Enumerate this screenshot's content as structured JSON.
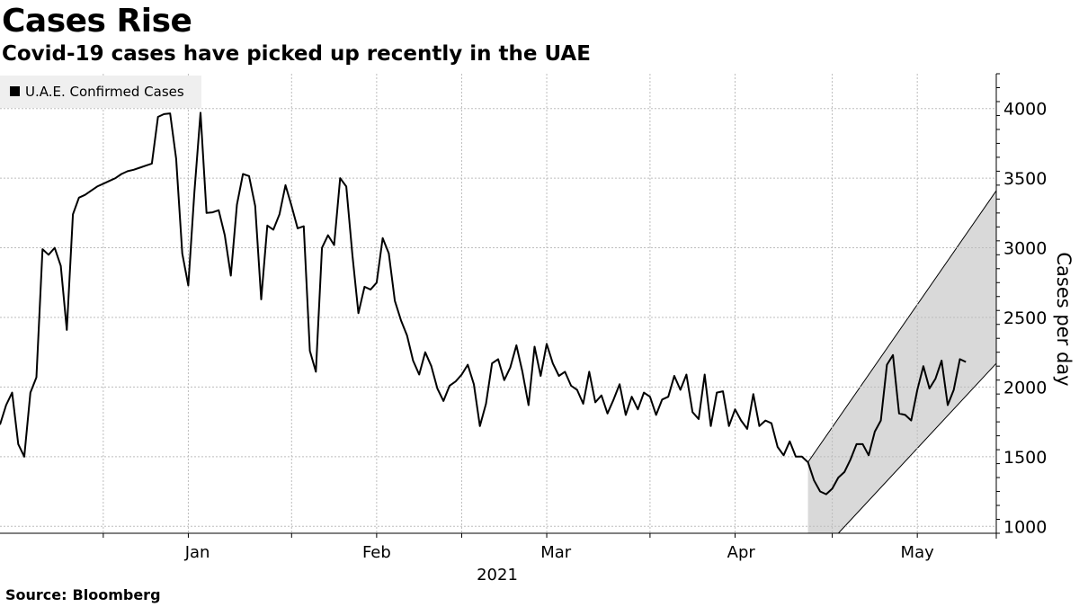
{
  "header": {
    "title": "Cases Rise",
    "subtitle": "Covid-19 cases have picked up recently in the UAE"
  },
  "footer": {
    "source_label": "Source:",
    "source_value": "Bloomberg"
  },
  "colors": {
    "line": "#000000",
    "band": "#d9d9d9",
    "grid": "#bdbdbd",
    "legend_bg": "#efefef"
  },
  "chart_data": {
    "type": "line",
    "title": "Cases Rise",
    "subtitle": "Covid-19 cases have picked up recently in the UAE",
    "xlabel": "2021",
    "ylabel": "Cases per day",
    "x_start": "2020-12-15",
    "x_end": "2021-05-28",
    "ylim": [
      950,
      4250
    ],
    "yticks": [
      1000,
      1500,
      2000,
      2500,
      3000,
      3500,
      4000
    ],
    "month_ticks": [
      {
        "label": "Jan",
        "date": "2021-01-01"
      },
      {
        "label": "Feb",
        "date": "2021-02-01"
      },
      {
        "label": "Mar",
        "date": "2021-03-01"
      },
      {
        "label": "Apr",
        "date": "2021-04-01"
      },
      {
        "label": "May",
        "date": "2021-05-01"
      }
    ],
    "vertical_grid_dates": [
      "2021-01-01",
      "2021-01-15",
      "2021-02-01",
      "2021-02-15",
      "2021-03-01",
      "2021-03-15",
      "2021-04-01",
      "2021-04-15",
      "2021-05-01",
      "2021-05-15"
    ],
    "grid": true,
    "legend_position": "top-left",
    "series": [
      {
        "name": "U.A.E. Confirmed Cases",
        "points": [
          [
            "2020-12-15",
            1730
          ],
          [
            "2020-12-16",
            1870
          ],
          [
            "2020-12-17",
            1960
          ],
          [
            "2020-12-18",
            1590
          ],
          [
            "2020-12-19",
            1500
          ],
          [
            "2020-12-20",
            1960
          ],
          [
            "2020-12-21",
            2070
          ],
          [
            "2020-12-22",
            2990
          ],
          [
            "2020-12-23",
            2950
          ],
          [
            "2020-12-24",
            3000
          ],
          [
            "2020-12-25",
            2870
          ],
          [
            "2020-12-26",
            2410
          ],
          [
            "2020-12-27",
            3240
          ],
          [
            "2020-12-28",
            3360
          ],
          [
            "2020-12-29",
            3380
          ],
          [
            "2020-12-30",
            3410
          ],
          [
            "2020-12-31",
            3440
          ],
          [
            "2021-01-01",
            3460
          ],
          [
            "2021-01-02",
            3480
          ],
          [
            "2021-01-03",
            3500
          ],
          [
            "2021-01-04",
            3530
          ],
          [
            "2021-01-05",
            3550
          ],
          [
            "2021-01-06",
            3560
          ],
          [
            "2021-01-07",
            3575
          ],
          [
            "2021-01-08",
            3590
          ],
          [
            "2021-01-09",
            3605
          ],
          [
            "2021-01-10",
            3940
          ],
          [
            "2021-01-11",
            3960
          ],
          [
            "2021-01-12",
            3965
          ],
          [
            "2021-01-13",
            3640
          ],
          [
            "2021-01-14",
            2960
          ],
          [
            "2021-01-15",
            2730
          ],
          [
            "2021-01-16",
            3400
          ],
          [
            "2021-01-17",
            3970
          ],
          [
            "2021-01-18",
            3250
          ],
          [
            "2021-01-19",
            3255
          ],
          [
            "2021-01-20",
            3270
          ],
          [
            "2021-01-21",
            3090
          ],
          [
            "2021-01-22",
            2800
          ],
          [
            "2021-01-23",
            3310
          ],
          [
            "2021-01-24",
            3530
          ],
          [
            "2021-01-25",
            3515
          ],
          [
            "2021-01-26",
            3300
          ],
          [
            "2021-01-27",
            2630
          ],
          [
            "2021-01-28",
            3160
          ],
          [
            "2021-01-29",
            3130
          ],
          [
            "2021-01-30",
            3240
          ],
          [
            "2021-01-31",
            3450
          ],
          [
            "2021-02-01",
            3300
          ],
          [
            "2021-02-02",
            3140
          ],
          [
            "2021-02-03",
            3155
          ],
          [
            "2021-02-04",
            2260
          ],
          [
            "2021-02-05",
            2110
          ],
          [
            "2021-02-06",
            3000
          ],
          [
            "2021-02-07",
            3090
          ],
          [
            "2021-02-08",
            3020
          ],
          [
            "2021-02-09",
            3500
          ],
          [
            "2021-02-10",
            3440
          ],
          [
            "2021-02-11",
            2950
          ],
          [
            "2021-02-12",
            2530
          ],
          [
            "2021-02-13",
            2720
          ],
          [
            "2021-02-14",
            2700
          ],
          [
            "2021-02-15",
            2750
          ],
          [
            "2021-02-16",
            3070
          ],
          [
            "2021-02-17",
            2960
          ],
          [
            "2021-02-18",
            2620
          ],
          [
            "2021-02-19",
            2480
          ],
          [
            "2021-02-20",
            2370
          ],
          [
            "2021-02-21",
            2190
          ],
          [
            "2021-02-22",
            2090
          ],
          [
            "2021-02-23",
            2250
          ],
          [
            "2021-02-24",
            2150
          ],
          [
            "2021-02-25",
            1990
          ],
          [
            "2021-02-26",
            1900
          ],
          [
            "2021-02-27",
            2010
          ],
          [
            "2021-02-28",
            2040
          ],
          [
            "2021-03-01",
            2090
          ],
          [
            "2021-03-02",
            2160
          ],
          [
            "2021-03-03",
            2020
          ],
          [
            "2021-03-04",
            1720
          ],
          [
            "2021-03-05",
            1880
          ],
          [
            "2021-03-06",
            2170
          ],
          [
            "2021-03-07",
            2200
          ],
          [
            "2021-03-08",
            2050
          ],
          [
            "2021-03-09",
            2140
          ],
          [
            "2021-03-10",
            2300
          ],
          [
            "2021-03-11",
            2110
          ],
          [
            "2021-03-12",
            1870
          ],
          [
            "2021-03-13",
            2290
          ],
          [
            "2021-03-14",
            2080
          ],
          [
            "2021-03-15",
            2310
          ],
          [
            "2021-03-16",
            2170
          ],
          [
            "2021-03-17",
            2080
          ],
          [
            "2021-03-18",
            2110
          ],
          [
            "2021-03-19",
            2010
          ],
          [
            "2021-03-20",
            1980
          ],
          [
            "2021-03-21",
            1880
          ],
          [
            "2021-03-22",
            2110
          ],
          [
            "2021-03-23",
            1890
          ],
          [
            "2021-03-24",
            1940
          ],
          [
            "2021-03-25",
            1810
          ],
          [
            "2021-03-26",
            1910
          ],
          [
            "2021-03-27",
            2020
          ],
          [
            "2021-03-28",
            1800
          ],
          [
            "2021-03-29",
            1930
          ],
          [
            "2021-03-30",
            1840
          ],
          [
            "2021-03-31",
            1960
          ],
          [
            "2021-04-01",
            1930
          ],
          [
            "2021-04-02",
            1800
          ],
          [
            "2021-04-03",
            1910
          ],
          [
            "2021-04-04",
            1930
          ],
          [
            "2021-04-05",
            2080
          ],
          [
            "2021-04-06",
            1980
          ],
          [
            "2021-04-07",
            2090
          ],
          [
            "2021-04-08",
            1820
          ],
          [
            "2021-04-09",
            1770
          ],
          [
            "2021-04-10",
            2090
          ],
          [
            "2021-04-11",
            1720
          ],
          [
            "2021-04-12",
            1960
          ],
          [
            "2021-04-13",
            1970
          ],
          [
            "2021-04-14",
            1720
          ],
          [
            "2021-04-15",
            1840
          ],
          [
            "2021-04-16",
            1760
          ],
          [
            "2021-04-17",
            1700
          ],
          [
            "2021-04-18",
            1950
          ],
          [
            "2021-04-19",
            1720
          ],
          [
            "2021-04-20",
            1760
          ],
          [
            "2021-04-21",
            1740
          ],
          [
            "2021-04-22",
            1570
          ],
          [
            "2021-04-23",
            1510
          ],
          [
            "2021-04-24",
            1610
          ],
          [
            "2021-04-25",
            1500
          ],
          [
            "2021-04-26",
            1500
          ],
          [
            "2021-04-27",
            1460
          ],
          [
            "2021-04-28",
            1330
          ],
          [
            "2021-04-29",
            1250
          ],
          [
            "2021-04-30",
            1230
          ],
          [
            "2021-05-01",
            1270
          ],
          [
            "2021-05-02",
            1350
          ],
          [
            "2021-05-03",
            1390
          ],
          [
            "2021-05-04",
            1480
          ],
          [
            "2021-05-05",
            1590
          ],
          [
            "2021-05-06",
            1590
          ],
          [
            "2021-05-07",
            1510
          ],
          [
            "2021-05-08",
            1680
          ],
          [
            "2021-05-09",
            1760
          ],
          [
            "2021-05-10",
            2160
          ],
          [
            "2021-05-11",
            2230
          ],
          [
            "2021-05-12",
            1810
          ],
          [
            "2021-05-13",
            1800
          ],
          [
            "2021-05-14",
            1760
          ],
          [
            "2021-05-15",
            1980
          ],
          [
            "2021-05-16",
            2150
          ],
          [
            "2021-05-17",
            1990
          ],
          [
            "2021-05-18",
            2060
          ],
          [
            "2021-05-19",
            2190
          ],
          [
            "2021-05-20",
            1870
          ],
          [
            "2021-05-21",
            1980
          ],
          [
            "2021-05-22",
            2200
          ],
          [
            "2021-05-23",
            2180
          ]
        ]
      }
    ],
    "channel_band": {
      "upper": [
        [
          "2021-04-27",
          1460
        ],
        [
          "2021-05-28",
          3410
        ]
      ],
      "lower": [
        [
          "2021-04-27",
          950
        ],
        [
          "2021-05-02",
          950
        ],
        [
          "2021-05-28",
          2170
        ]
      ]
    }
  }
}
